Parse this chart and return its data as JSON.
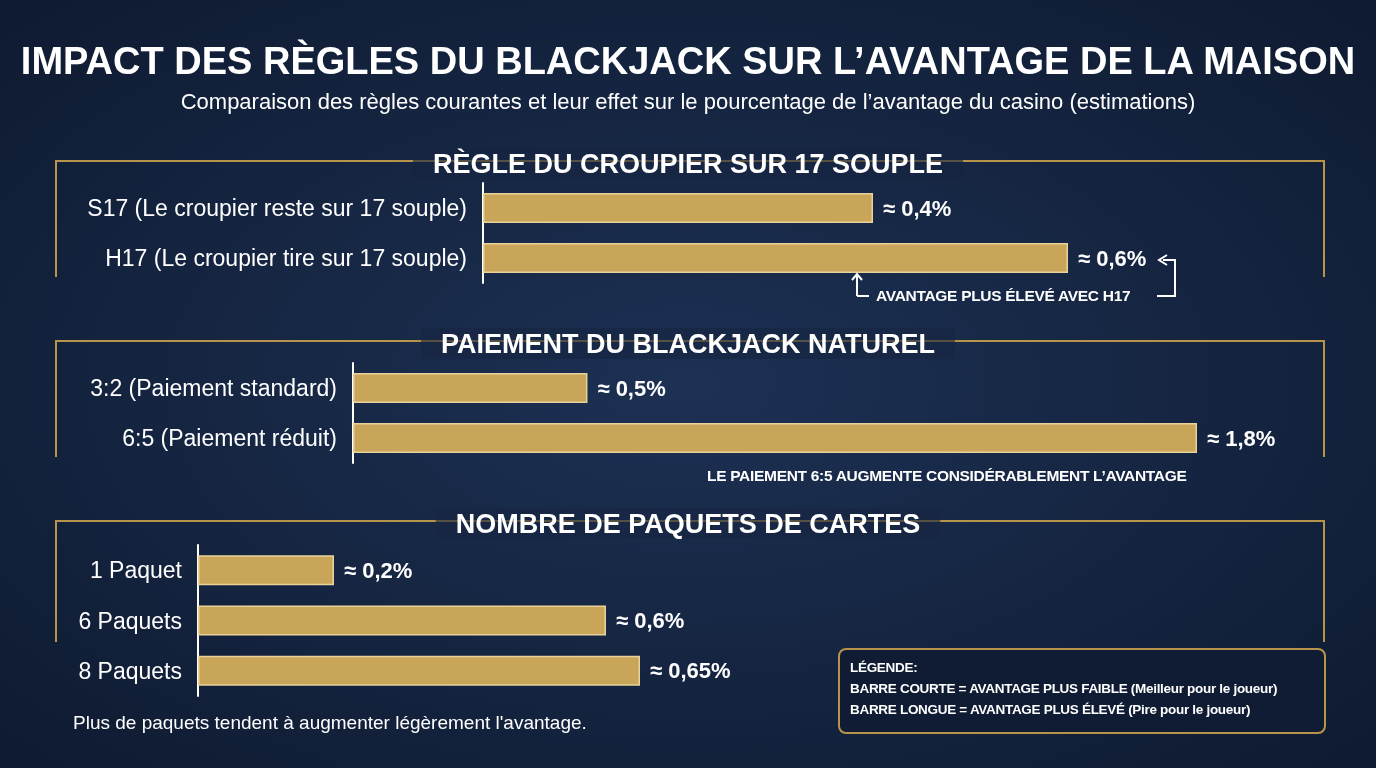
{
  "chart_data": [
    {
      "type": "other",
      "title": "IMPACT DES RÈGLES DU BLACKJACK SUR L’AVANTAGE DE LA MAISON",
      "subtitle": "Comparaison des règles courantes et leur effet sur le pourcentage de l’avantage du casino (estimations)"
    },
    {
      "type": "bar",
      "orientation": "horizontal",
      "title": "RÈGLE DU CROUPIER SUR 17 SOUPLE",
      "categories": [
        "S17 (Le croupier reste sur 17 souple)",
        "H17 (Le croupier tire sur 17 souple)"
      ],
      "series": [
        {
          "color": "#c9a55a",
          "values": [
            0.4,
            0.6
          ],
          "value_labels": [
            "≈ 0,4%",
            "≈ 0,6%"
          ]
        }
      ],
      "annotations": [
        "AVANTAGE PLUS ÉLEVÉ AVEC H17"
      ],
      "grid": false
    },
    {
      "type": "bar",
      "orientation": "horizontal",
      "title": "PAIEMENT DU BLACKJACK NATUREL",
      "categories": [
        "3:2 (Paiement standard)",
        "6:5 (Paiement réduit)"
      ],
      "series": [
        {
          "color": "#c9a55a",
          "values": [
            0.5,
            1.8
          ],
          "value_labels": [
            "≈ 0,5%",
            "≈ 1,8%"
          ]
        }
      ],
      "annotations": [
        "LE PAIEMENT 6:5 AUGMENTE CONSIDÉRABLEMENT L’AVANTAGE"
      ],
      "grid": false
    },
    {
      "type": "bar",
      "orientation": "horizontal",
      "title": "NOMBRE DE PAQUETS DE CARTES",
      "categories": [
        "1 Paquet",
        "6 Paquets",
        "8 Paquets"
      ],
      "series": [
        {
          "color": "#c9a55a",
          "values": [
            0.2,
            0.6,
            0.65
          ],
          "value_labels": [
            "≈ 0,2%",
            "≈ 0,6%",
            "≈ 0,65%"
          ]
        }
      ],
      "annotations": [
        "Plus de paquets tendent à augmenter légèrement l'avantage.",
        "LÉGENDE:",
        "BARRE COURTE = AVANTAGE PLUS FAIBLE (Meilleur pour le joueur)",
        "BARRE LONGUE = AVANTAGE PLUS ÉLEVÉ (Pire pour le joueur)"
      ],
      "grid": false
    }
  ]
}
